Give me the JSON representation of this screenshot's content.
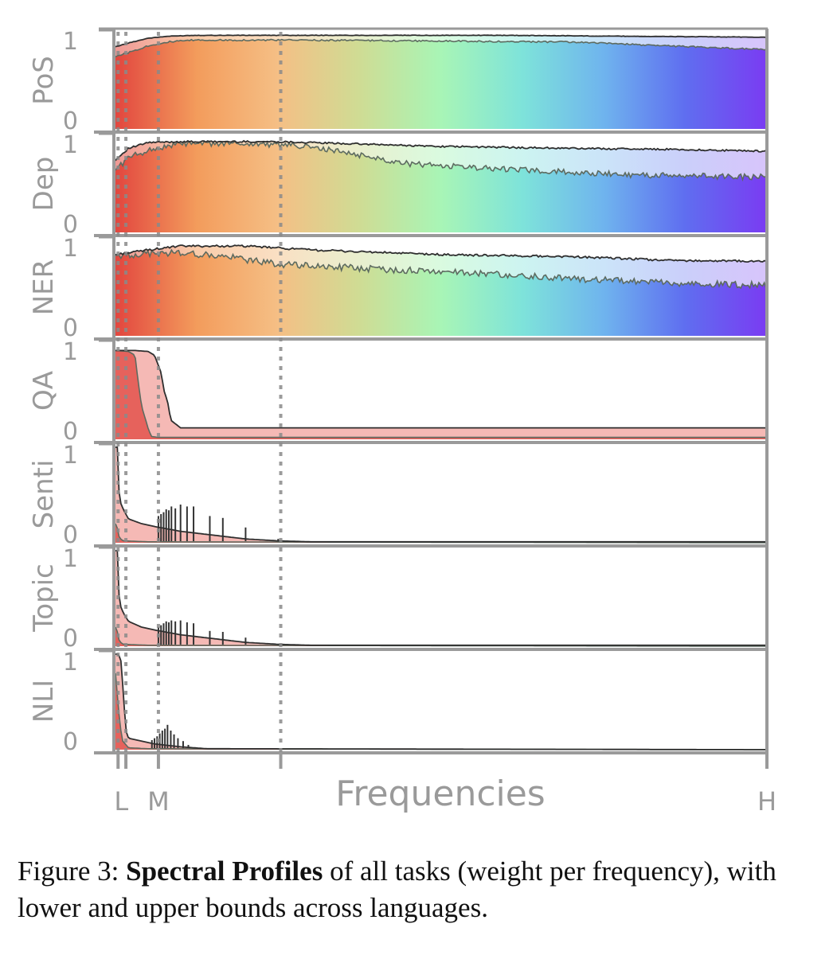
{
  "chart_data": {
    "type": "area",
    "xlabel": "Frequencies",
    "x_ticks": [
      "L",
      "M",
      "H"
    ],
    "panel_y_ticks": [
      "0",
      "1"
    ],
    "ylim": [
      0,
      1
    ],
    "background": "frequency gradient red to violet (shown where upper bound stays high)",
    "gradient_colors": [
      "#e2463f",
      "#f39c5c",
      "#f5bf85",
      "#cfdc94",
      "#a8f5b6",
      "#7ee3da",
      "#6fb4ee",
      "#5f6ef0",
      "#7a3cf2"
    ],
    "x_domain": [
      0,
      1
    ],
    "vertical_guides": [
      0.004,
      0.016,
      0.066,
      0.254
    ],
    "panels": [
      {
        "name": "PoS",
        "upper": [
          [
            0,
            0.86
          ],
          [
            0.02,
            0.9
          ],
          [
            0.05,
            0.95
          ],
          [
            0.08,
            0.97
          ],
          [
            0.12,
            0.98
          ],
          [
            0.3,
            0.98
          ],
          [
            0.6,
            0.98
          ],
          [
            0.8,
            0.97
          ],
          [
            1,
            0.96
          ]
        ],
        "lower": [
          [
            0,
            0.76
          ],
          [
            0.02,
            0.8
          ],
          [
            0.05,
            0.87
          ],
          [
            0.08,
            0.91
          ],
          [
            0.12,
            0.93
          ],
          [
            0.3,
            0.93
          ],
          [
            0.5,
            0.92
          ],
          [
            0.7,
            0.91
          ],
          [
            0.85,
            0.87
          ],
          [
            1,
            0.83
          ]
        ],
        "noise": 0.008,
        "gradient": true
      },
      {
        "name": "Dep",
        "upper": [
          [
            0,
            0.76
          ],
          [
            0.02,
            0.88
          ],
          [
            0.05,
            0.94
          ],
          [
            0.1,
            0.95
          ],
          [
            0.25,
            0.95
          ],
          [
            0.35,
            0.93
          ],
          [
            0.5,
            0.9
          ],
          [
            0.7,
            0.88
          ],
          [
            0.85,
            0.87
          ],
          [
            1,
            0.85
          ]
        ],
        "lower": [
          [
            0,
            0.66
          ],
          [
            0.02,
            0.78
          ],
          [
            0.05,
            0.86
          ],
          [
            0.1,
            0.93
          ],
          [
            0.2,
            0.93
          ],
          [
            0.28,
            0.91
          ],
          [
            0.35,
            0.84
          ],
          [
            0.45,
            0.72
          ],
          [
            0.6,
            0.66
          ],
          [
            0.8,
            0.6
          ],
          [
            1,
            0.58
          ]
        ],
        "noise": 0.03,
        "gradient": true
      },
      {
        "name": "NER",
        "upper": [
          [
            0,
            0.85
          ],
          [
            0.05,
            0.9
          ],
          [
            0.1,
            0.94
          ],
          [
            0.2,
            0.94
          ],
          [
            0.3,
            0.9
          ],
          [
            0.5,
            0.85
          ],
          [
            0.7,
            0.83
          ],
          [
            0.85,
            0.79
          ],
          [
            1,
            0.78
          ]
        ],
        "lower": [
          [
            0,
            0.84
          ],
          [
            0.05,
            0.86
          ],
          [
            0.1,
            0.87
          ],
          [
            0.18,
            0.82
          ],
          [
            0.25,
            0.75
          ],
          [
            0.4,
            0.7
          ],
          [
            0.55,
            0.66
          ],
          [
            0.7,
            0.6
          ],
          [
            0.85,
            0.55
          ],
          [
            1,
            0.53
          ]
        ],
        "noise": 0.035,
        "gradient": true
      },
      {
        "name": "QA",
        "upper": [
          [
            0,
            0.93
          ],
          [
            0.03,
            0.93
          ],
          [
            0.05,
            0.92
          ],
          [
            0.06,
            0.88
          ],
          [
            0.07,
            0.7
          ],
          [
            0.075,
            0.5
          ],
          [
            0.08,
            0.4
          ],
          [
            0.085,
            0.2
          ],
          [
            0.1,
            0.12
          ],
          [
            0.2,
            0.12
          ],
          [
            0.5,
            0.12
          ],
          [
            1,
            0.12
          ]
        ],
        "lower": [
          [
            0,
            0.93
          ],
          [
            0.02,
            0.92
          ],
          [
            0.03,
            0.88
          ],
          [
            0.035,
            0.6
          ],
          [
            0.04,
            0.35
          ],
          [
            0.05,
            0.12
          ],
          [
            0.055,
            0.03
          ],
          [
            0.065,
            0.02
          ],
          [
            0.1,
            0.02
          ],
          [
            1,
            0.02
          ]
        ],
        "noise": 0,
        "gradient": false
      },
      {
        "name": "Senti",
        "upper": [
          [
            0,
            1
          ],
          [
            0.003,
            1
          ],
          [
            0.006,
            0.45
          ],
          [
            0.012,
            0.35
          ],
          [
            0.02,
            0.25
          ],
          [
            0.04,
            0.2
          ],
          [
            0.06,
            0.17
          ],
          [
            0.1,
            0.12
          ],
          [
            0.15,
            0.08
          ],
          [
            0.2,
            0.04
          ],
          [
            0.25,
            0.02
          ],
          [
            0.3,
            0.01
          ],
          [
            1,
            0.01
          ]
        ],
        "lower": [
          [
            0,
            0.2
          ],
          [
            0.003,
            0.15
          ],
          [
            0.006,
            0.05
          ],
          [
            0.012,
            0.02
          ],
          [
            0.05,
            0.01
          ],
          [
            1,
            0.0
          ]
        ],
        "spikes_x": [
          0.066,
          0.07,
          0.074,
          0.078,
          0.082,
          0.086,
          0.092,
          0.1,
          0.11,
          0.12,
          0.145,
          0.165,
          0.2,
          0.25
        ],
        "spikes_h": [
          0.28,
          0.3,
          0.32,
          0.35,
          0.34,
          0.38,
          0.36,
          0.4,
          0.38,
          0.38,
          0.28,
          0.26,
          0.16,
          0.04
        ],
        "noise": 0,
        "gradient": false
      },
      {
        "name": "Topic",
        "upper": [
          [
            0,
            1
          ],
          [
            0.003,
            1
          ],
          [
            0.006,
            0.45
          ],
          [
            0.012,
            0.35
          ],
          [
            0.02,
            0.26
          ],
          [
            0.04,
            0.2
          ],
          [
            0.06,
            0.17
          ],
          [
            0.1,
            0.12
          ],
          [
            0.15,
            0.08
          ],
          [
            0.2,
            0.04
          ],
          [
            0.25,
            0.02
          ],
          [
            0.3,
            0.01
          ],
          [
            1,
            0.01
          ]
        ],
        "lower": [
          [
            0,
            0.2
          ],
          [
            0.003,
            0.15
          ],
          [
            0.006,
            0.05
          ],
          [
            0.012,
            0.02
          ],
          [
            0.05,
            0.01
          ],
          [
            1,
            0.0
          ]
        ],
        "spikes_x": [
          0.066,
          0.07,
          0.074,
          0.078,
          0.082,
          0.086,
          0.092,
          0.1,
          0.11,
          0.12,
          0.145,
          0.165,
          0.2,
          0.25
        ],
        "spikes_h": [
          0.2,
          0.22,
          0.24,
          0.26,
          0.25,
          0.27,
          0.26,
          0.27,
          0.25,
          0.24,
          0.16,
          0.15,
          0.09,
          0.02
        ],
        "noise": 0,
        "gradient": false
      },
      {
        "name": "NLI",
        "upper": [
          [
            0,
            1
          ],
          [
            0.004,
            1
          ],
          [
            0.008,
            0.96
          ],
          [
            0.012,
            0.6
          ],
          [
            0.016,
            0.2
          ],
          [
            0.02,
            0.12
          ],
          [
            0.04,
            0.09
          ],
          [
            0.06,
            0.06
          ],
          [
            0.1,
            0.03
          ],
          [
            0.14,
            0.01
          ],
          [
            1,
            0.0
          ]
        ],
        "lower": [
          [
            0,
            0.8
          ],
          [
            0.005,
            0.4
          ],
          [
            0.01,
            0.1
          ],
          [
            0.02,
            0.02
          ],
          [
            0.05,
            0.01
          ],
          [
            1,
            0.0
          ]
        ],
        "spikes_x": [
          0.056,
          0.06,
          0.064,
          0.068,
          0.072,
          0.076,
          0.08,
          0.085,
          0.09,
          0.096,
          0.104,
          0.112
        ],
        "spikes_h": [
          0.1,
          0.12,
          0.14,
          0.17,
          0.2,
          0.22,
          0.26,
          0.2,
          0.16,
          0.12,
          0.09,
          0.05
        ],
        "noise": 0,
        "gradient": false
      }
    ]
  },
  "caption": {
    "label": "Figure 3: ",
    "bold": "Spectral Profiles",
    "rest": " of all tasks (weight per frequency), with lower and upper bounds across languages."
  }
}
